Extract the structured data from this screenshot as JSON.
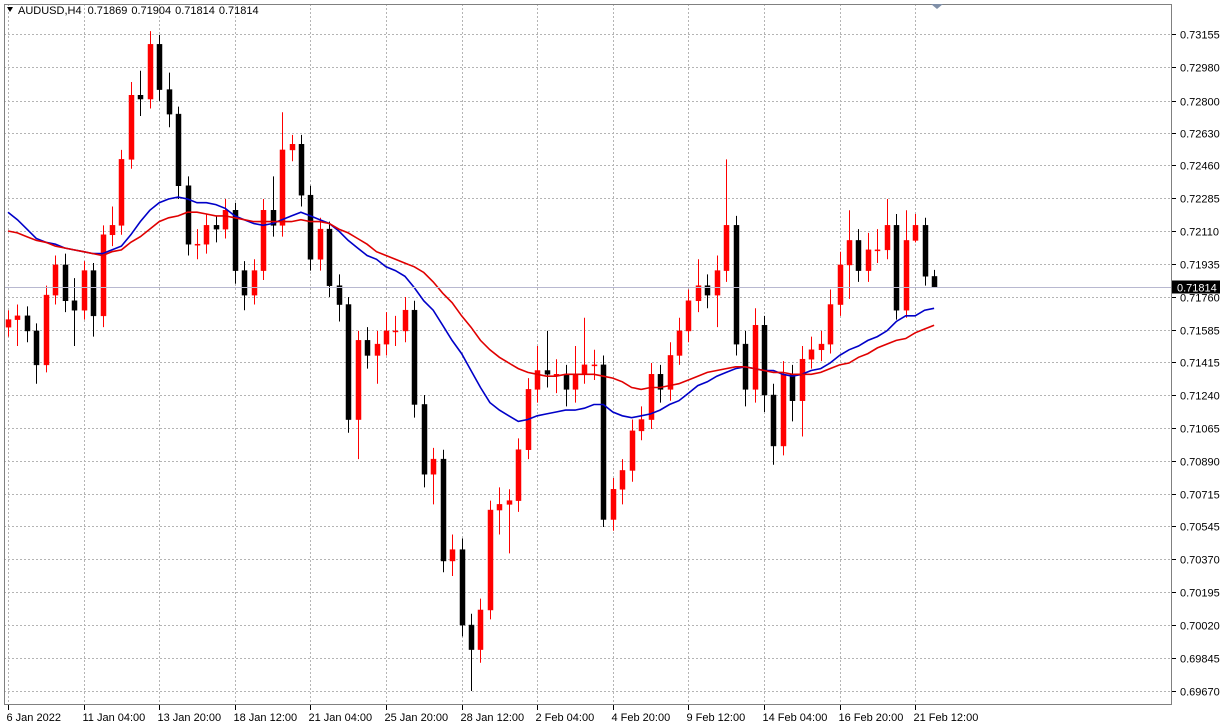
{
  "chart_data": {
    "type": "candlestick",
    "title": "AUDUSD,H4",
    "categories": [
      "6 Jan 2022",
      null,
      null,
      null,
      null,
      null,
      null,
      null,
      "11 Jan 04:00",
      null,
      null,
      null,
      null,
      null,
      null,
      null,
      "13 Jan 20:00",
      null,
      null,
      null,
      null,
      null,
      null,
      null,
      "18 Jan 12:00",
      null,
      null,
      null,
      null,
      null,
      null,
      null,
      "21 Jan 04:00",
      null,
      null,
      null,
      null,
      null,
      null,
      null,
      "25 Jan 20:00",
      null,
      null,
      null,
      null,
      null,
      null,
      null,
      "28 Jan 12:00",
      null,
      null,
      null,
      null,
      null,
      null,
      null,
      "2 Feb 04:00",
      null,
      null,
      null,
      null,
      null,
      null,
      null,
      "4 Feb 20:00",
      null,
      null,
      null,
      null,
      null,
      null,
      null,
      "9 Feb 12:00",
      null,
      null,
      null,
      null,
      null,
      null,
      null,
      "14 Feb 04:00",
      null,
      null,
      null,
      null,
      null,
      null,
      null,
      "16 Feb 20:00",
      null,
      null,
      null,
      null,
      null,
      null,
      null,
      "21 Feb 12:00",
      null,
      null
    ],
    "open": [
      0.716,
      0.7164,
      0.7166,
      0.7158,
      0.714,
      0.7177,
      0.7193,
      0.7174,
      0.7169,
      0.719,
      0.7166,
      0.7209,
      0.7214,
      0.7249,
      0.7283,
      0.7281,
      0.731,
      0.7286,
      0.7273,
      0.7235,
      0.7204,
      0.7204,
      0.7214,
      0.7212,
      0.7222,
      0.719,
      0.7177,
      0.719,
      0.7222,
      0.7214,
      0.7254,
      0.7257,
      0.723,
      0.7196,
      0.7212,
      0.7182,
      0.7172,
      0.7111,
      0.7153,
      0.7145,
      0.7151,
      0.7158,
      0.7158,
      0.7169,
      0.7119,
      0.7082,
      0.709,
      0.7036,
      0.7042,
      0.7002,
      0.6989,
      0.701,
      0.7063,
      0.7066,
      0.7068,
      0.7095,
      0.7127,
      0.7137,
      0.7135,
      0.7135,
      0.7127,
      0.7135,
      0.714,
      0.714,
      0.7058,
      0.7074,
      0.7084,
      0.7105,
      0.7111,
      0.7135,
      0.7127,
      0.7145,
      0.7158,
      0.7174,
      0.7182,
      0.7177,
      0.719,
      0.7214,
      0.7151,
      0.7127,
      0.7161,
      0.7124,
      0.7097,
      0.7135,
      0.7121,
      0.7143,
      0.7148,
      0.7151,
      0.7172,
      0.7193,
      0.7206,
      0.719,
      0.7201,
      0.7201,
      0.7214,
      0.7169,
      0.7206,
      0.7214,
      0.71869
    ],
    "high": [
      0.7169,
      0.7172,
      0.7171,
      0.7162,
      0.7182,
      0.7198,
      0.7199,
      0.7186,
      0.7195,
      0.7194,
      0.7214,
      0.7224,
      0.7254,
      0.729,
      0.7296,
      0.7317,
      0.7315,
      0.7295,
      0.7277,
      0.724,
      0.7212,
      0.722,
      0.7219,
      0.7228,
      0.7226,
      0.7195,
      0.7196,
      0.7228,
      0.724,
      0.7274,
      0.7262,
      0.7262,
      0.7235,
      0.7218,
      0.7216,
      0.7188,
      0.7176,
      0.7158,
      0.716,
      0.7158,
      0.7168,
      0.7166,
      0.7176,
      0.7174,
      0.7124,
      0.7096,
      0.7095,
      0.705,
      0.7048,
      0.7008,
      0.7016,
      0.7068,
      0.7075,
      0.7074,
      0.7101,
      0.7133,
      0.715,
      0.7158,
      0.7143,
      0.714,
      0.715,
      0.7165,
      0.7148,
      0.7145,
      0.708,
      0.709,
      0.7111,
      0.7118,
      0.7141,
      0.714,
      0.7152,
      0.7165,
      0.718,
      0.7196,
      0.7188,
      0.7198,
      0.7249,
      0.7219,
      0.7158,
      0.717,
      0.7166,
      0.713,
      0.7142,
      0.714,
      0.715,
      0.7155,
      0.7158,
      0.718,
      0.72,
      0.7222,
      0.7212,
      0.721,
      0.7212,
      0.7228,
      0.722,
      0.7222,
      0.722,
      0.7218,
      0.71904
    ],
    "low": [
      0.7155,
      0.715,
      0.7152,
      0.713,
      0.7136,
      0.7172,
      0.7168,
      0.715,
      0.7164,
      0.7155,
      0.716,
      0.7203,
      0.7209,
      0.7244,
      0.7272,
      0.7276,
      0.728,
      0.7266,
      0.7228,
      0.7198,
      0.7196,
      0.7199,
      0.7205,
      0.7207,
      0.7183,
      0.7169,
      0.7172,
      0.7185,
      0.7208,
      0.7208,
      0.7248,
      0.7224,
      0.719,
      0.719,
      0.7176,
      0.7163,
      0.7104,
      0.709,
      0.7138,
      0.713,
      0.7145,
      0.715,
      0.7152,
      0.7112,
      0.7075,
      0.7066,
      0.703,
      0.7028,
      0.6996,
      0.6967,
      0.6982,
      0.7005,
      0.705,
      0.704,
      0.7062,
      0.709,
      0.712,
      0.7128,
      0.7125,
      0.7118,
      0.712,
      0.713,
      0.7132,
      0.7054,
      0.7052,
      0.7066,
      0.7078,
      0.71,
      0.7106,
      0.712,
      0.7121,
      0.714,
      0.7152,
      0.7168,
      0.717,
      0.716,
      0.7184,
      0.7145,
      0.7118,
      0.712,
      0.7115,
      0.7087,
      0.7092,
      0.711,
      0.7102,
      0.7138,
      0.7142,
      0.7146,
      0.7166,
      0.7175,
      0.7184,
      0.7184,
      0.7194,
      0.7196,
      0.7164,
      0.7165,
      0.7205,
      0.7182,
      0.71814
    ],
    "close": [
      0.7164,
      0.7166,
      0.7158,
      0.714,
      0.7177,
      0.7193,
      0.7174,
      0.7169,
      0.719,
      0.7166,
      0.7209,
      0.7214,
      0.7249,
      0.7283,
      0.7281,
      0.731,
      0.7286,
      0.7273,
      0.7235,
      0.7204,
      0.7204,
      0.7214,
      0.7212,
      0.7222,
      0.719,
      0.7177,
      0.719,
      0.7222,
      0.7214,
      0.7254,
      0.7257,
      0.723,
      0.7196,
      0.7212,
      0.7182,
      0.7172,
      0.7111,
      0.7153,
      0.7145,
      0.7151,
      0.7158,
      0.7158,
      0.7169,
      0.7119,
      0.7082,
      0.709,
      0.7036,
      0.7042,
      0.7002,
      0.6989,
      0.701,
      0.7063,
      0.7066,
      0.7068,
      0.7095,
      0.7127,
      0.7137,
      0.7135,
      0.7135,
      0.7127,
      0.7135,
      0.714,
      0.714,
      0.7058,
      0.7074,
      0.7084,
      0.7105,
      0.7111,
      0.7135,
      0.7127,
      0.7145,
      0.7158,
      0.7174,
      0.7182,
      0.7177,
      0.719,
      0.7214,
      0.7151,
      0.7127,
      0.7161,
      0.7124,
      0.7097,
      0.7135,
      0.7121,
      0.7143,
      0.7148,
      0.7151,
      0.7172,
      0.7193,
      0.7206,
      0.719,
      0.7201,
      0.7201,
      0.7214,
      0.7169,
      0.7206,
      0.7214,
      0.7187,
      0.71814
    ],
    "up_color": "#ff0000",
    "down_color": "#000000",
    "series": [
      {
        "color": "#0000c8",
        "values": [
          0.7221,
          0.7217,
          0.7212,
          0.7207,
          0.7205,
          0.7204,
          0.7202,
          0.7201,
          0.72,
          0.7199,
          0.7199,
          0.7201,
          0.7203,
          0.7209,
          0.7216,
          0.7222,
          0.7226,
          0.7228,
          0.7229,
          0.7228,
          0.7226,
          0.7226,
          0.7225,
          0.7223,
          0.7219,
          0.7217,
          0.7215,
          0.7214,
          0.7215,
          0.7217,
          0.7219,
          0.7221,
          0.7219,
          0.7217,
          0.7215,
          0.7211,
          0.7206,
          0.7202,
          0.7198,
          0.7196,
          0.7192,
          0.719,
          0.7187,
          0.7181,
          0.7174,
          0.7169,
          0.7161,
          0.7153,
          0.7146,
          0.7137,
          0.7128,
          0.712,
          0.7116,
          0.7113,
          0.711,
          0.7111,
          0.7113,
          0.7114,
          0.7115,
          0.7116,
          0.7116,
          0.7117,
          0.7119,
          0.7119,
          0.7115,
          0.7113,
          0.7112,
          0.7113,
          0.7114,
          0.7116,
          0.7119,
          0.7121,
          0.7125,
          0.7129,
          0.7131,
          0.7134,
          0.7136,
          0.7138,
          0.7139,
          0.7138,
          0.7137,
          0.7137,
          0.7135,
          0.7134,
          0.7135,
          0.7137,
          0.7138,
          0.7141,
          0.7145,
          0.7148,
          0.715,
          0.7153,
          0.7155,
          0.7158,
          0.7163,
          0.7166,
          0.7166,
          0.7169,
          0.717
        ]
      },
      {
        "color": "#e00000",
        "values": [
          0.7211,
          0.721,
          0.7208,
          0.7206,
          0.7205,
          0.7203,
          0.7202,
          0.7201,
          0.72,
          0.7199,
          0.7198,
          0.72,
          0.7201,
          0.7205,
          0.7208,
          0.7212,
          0.7216,
          0.7218,
          0.7219,
          0.7221,
          0.7221,
          0.722,
          0.7219,
          0.7219,
          0.7218,
          0.7217,
          0.7216,
          0.7216,
          0.7216,
          0.7216,
          0.7216,
          0.7217,
          0.7216,
          0.7216,
          0.7215,
          0.7212,
          0.721,
          0.7207,
          0.7204,
          0.72,
          0.7198,
          0.7196,
          0.7194,
          0.7192,
          0.7189,
          0.7184,
          0.7178,
          0.7173,
          0.7166,
          0.716,
          0.7153,
          0.7148,
          0.7144,
          0.7141,
          0.7138,
          0.7136,
          0.7135,
          0.7134,
          0.7134,
          0.7135,
          0.7135,
          0.7135,
          0.7135,
          0.7134,
          0.7133,
          0.7131,
          0.7128,
          0.7127,
          0.7128,
          0.7128,
          0.7129,
          0.713,
          0.7132,
          0.7134,
          0.7136,
          0.7137,
          0.7138,
          0.7139,
          0.7139,
          0.7138,
          0.7137,
          0.7136,
          0.7136,
          0.7135,
          0.7135,
          0.7135,
          0.7136,
          0.7138,
          0.714,
          0.7141,
          0.7144,
          0.7146,
          0.7149,
          0.7151,
          0.7153,
          0.7154,
          0.7157,
          0.7159,
          0.7161
        ]
      }
    ],
    "ylim": [
      0.69596,
      0.73314
    ],
    "yticks": [
      0.73155,
      {
        "value": 0.7298,
        "label": "0.72980"
      },
      {
        "value": 0.728,
        "label": "0.72800"
      },
      {
        "value": 0.7263,
        "label": "0.72630"
      },
      {
        "value": 0.7246,
        "label": "0.72460"
      },
      0.72285,
      {
        "value": 0.7211,
        "label": "0.72110"
      },
      0.71935,
      {
        "value": 0.7176,
        "label": "0.71760"
      },
      0.71585,
      0.71415,
      {
        "value": 0.7124,
        "label": "0.71240"
      },
      0.71065,
      {
        "value": 0.7089,
        "label": "0.70890"
      },
      0.70715,
      0.70545,
      {
        "value": 0.7037,
        "label": "0.70370"
      },
      0.70195,
      {
        "value": 0.7002,
        "label": "0.70020"
      },
      0.69845,
      {
        "value": 0.6967,
        "label": "0.69670"
      }
    ],
    "grid": true
  }
}
